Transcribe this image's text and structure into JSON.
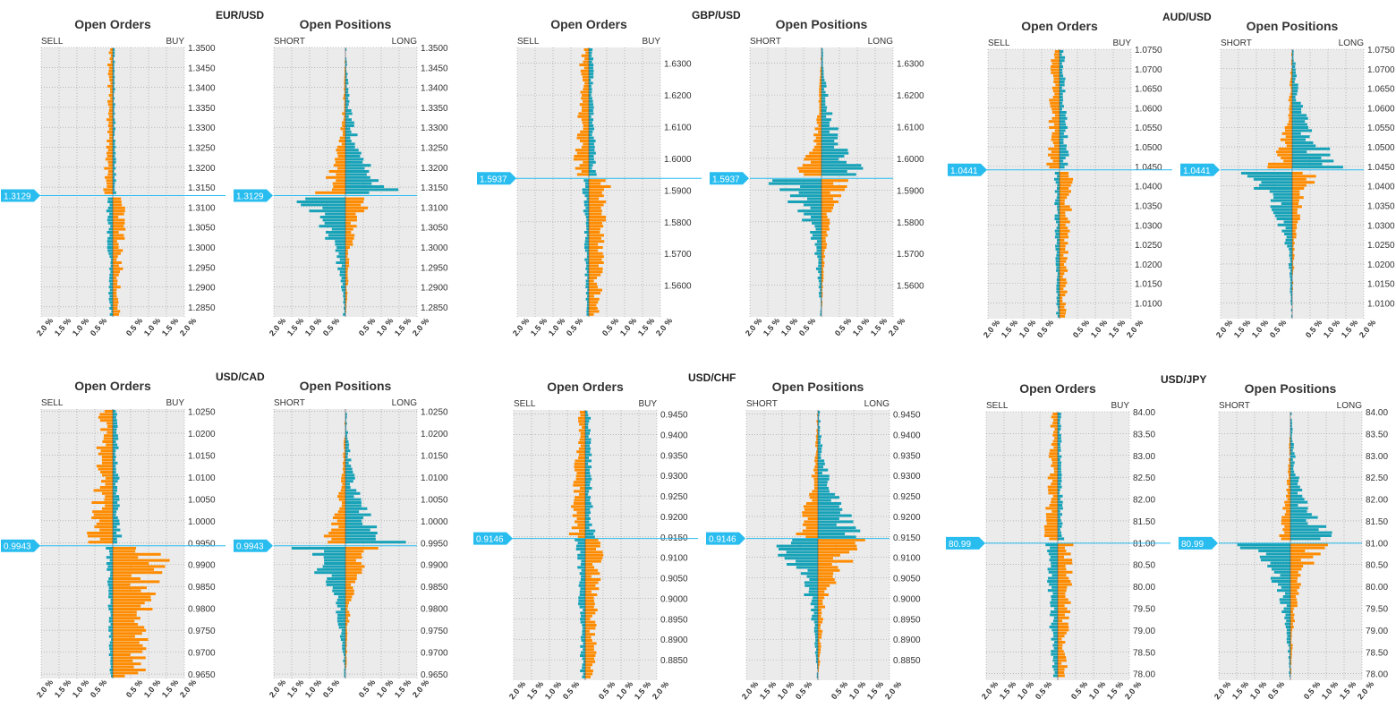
{
  "colors": {
    "orange": "#FF8C00",
    "teal": "#17A2B8",
    "plot_bg": "#EBEBEB",
    "price_marker": "#29BDEF"
  },
  "x_axis": {
    "max_pct": 2.0,
    "tick_labels": [
      "2.0 %",
      "1.5 %",
      "1.0 %",
      "0.5 %",
      "0.5 %",
      "1.0 %",
      "1.5 %",
      "2.0 %"
    ]
  },
  "chart_data": [
    {
      "type": "bar",
      "pair": "EUR/USD",
      "price": 1.3129,
      "price_label": "1.3129",
      "ylim": [
        1.2825,
        1.35
      ],
      "y_ticks": [
        "1.3500",
        "1.3450",
        "1.3400",
        "1.3350",
        "1.3300",
        "1.3250",
        "1.3200",
        "1.3150",
        "1.3100",
        "1.3050",
        "1.3000",
        "1.2950",
        "1.2900",
        "1.2850"
      ],
      "orders": {
        "title": "Open Orders",
        "left_label": "SELL",
        "right_label": "BUY",
        "left_series": "SELL",
        "right_series": "BUY",
        "above": {
          "left_max": 0.3,
          "right_max": 0.12,
          "left_color": "orange",
          "right_color": "teal"
        },
        "below": {
          "left_max": 0.22,
          "right_max": 0.45,
          "left_color": "teal",
          "right_color": "orange"
        }
      },
      "positions": {
        "title": "Open Positions",
        "left_label": "SHORT",
        "right_label": "LONG",
        "above": {
          "left_max": 1.0,
          "right_max": 1.9,
          "left_color": "orange",
          "right_color": "teal"
        },
        "below": {
          "left_max": 1.9,
          "right_max": 0.9,
          "left_color": "teal",
          "right_color": "orange"
        }
      }
    },
    {
      "type": "bar",
      "pair": "GBP/USD",
      "price": 1.5937,
      "price_label": "1.5937",
      "ylim": [
        1.55,
        1.635
      ],
      "y_ticks": [
        "1.6300",
        "1.6200",
        "1.6100",
        "1.6000",
        "1.5900",
        "1.5800",
        "1.5700",
        "1.5600"
      ],
      "orders": {
        "title": "Open Orders",
        "left_label": "SELL",
        "right_label": "BUY",
        "above": {
          "left_max": 0.5,
          "right_max": 0.25,
          "left_color": "orange",
          "right_color": "teal"
        },
        "below": {
          "left_max": 0.2,
          "right_max": 0.7,
          "left_color": "teal",
          "right_color": "orange"
        }
      },
      "positions": {
        "title": "Open Positions",
        "left_label": "SHORT",
        "right_label": "LONG",
        "above": {
          "left_max": 0.9,
          "right_max": 1.9,
          "left_color": "orange",
          "right_color": "teal"
        },
        "below": {
          "left_max": 1.9,
          "right_max": 1.0,
          "left_color": "teal",
          "right_color": "orange"
        }
      }
    },
    {
      "type": "bar",
      "pair": "AUD/USD",
      "price": 1.0441,
      "price_label": "1.0441",
      "ylim": [
        1.006,
        1.075
      ],
      "y_ticks": [
        "1.0750",
        "1.0700",
        "1.0650",
        "1.0600",
        "1.0550",
        "1.0500",
        "1.0450",
        "1.0400",
        "1.0350",
        "1.0300",
        "1.0250",
        "1.0200",
        "1.0150",
        "1.0100"
      ],
      "orders": {
        "title": "Open Orders",
        "left_label": "SELL",
        "right_label": "BUY",
        "above": {
          "left_max": 0.45,
          "right_max": 0.3,
          "left_color": "orange",
          "right_color": "teal"
        },
        "below": {
          "left_max": 0.2,
          "right_max": 0.45,
          "left_color": "teal",
          "right_color": "orange"
        }
      },
      "positions": {
        "title": "Open Positions",
        "left_label": "SHORT",
        "right_label": "LONG",
        "above": {
          "left_max": 0.8,
          "right_max": 1.9,
          "left_color": "orange",
          "right_color": "teal"
        },
        "below": {
          "left_max": 1.9,
          "right_max": 0.9,
          "left_color": "teal",
          "right_color": "orange"
        }
      }
    },
    {
      "type": "bar",
      "pair": "USD/CAD",
      "price": 0.9943,
      "price_label": "0.9943",
      "ylim": [
        0.964,
        1.0255
      ],
      "y_ticks": [
        "1.0250",
        "1.0200",
        "1.0150",
        "1.0100",
        "1.0050",
        "1.0000",
        "0.9950",
        "0.9900",
        "0.9850",
        "0.9800",
        "0.9750",
        "0.9700",
        "0.9650"
      ],
      "orders": {
        "title": "Open Orders",
        "left_label": "SELL",
        "right_label": "BUY",
        "above": {
          "left_max": 0.8,
          "right_max": 0.3,
          "left_color": "orange",
          "right_color": "teal"
        },
        "below": {
          "left_max": 0.2,
          "right_max": 1.8,
          "left_color": "teal",
          "right_color": "orange"
        }
      },
      "positions": {
        "title": "Open Positions",
        "left_label": "SHORT",
        "right_label": "LONG",
        "above": {
          "left_max": 0.9,
          "right_max": 1.9,
          "left_color": "orange",
          "right_color": "teal"
        },
        "below": {
          "left_max": 1.9,
          "right_max": 1.0,
          "left_color": "teal",
          "right_color": "orange"
        }
      }
    },
    {
      "type": "bar",
      "pair": "USD/CHF",
      "price": 0.9146,
      "price_label": "0.9146",
      "ylim": [
        0.88,
        0.946
      ],
      "y_ticks": [
        "0.9450",
        "0.9400",
        "0.9350",
        "0.9300",
        "0.9250",
        "0.9200",
        "0.9150",
        "0.9100",
        "0.9050",
        "0.9000",
        "0.8950",
        "0.8900",
        "0.8850"
      ],
      "orders": {
        "title": "Open Orders",
        "left_label": "SELL",
        "right_label": "BUY",
        "above": {
          "left_max": 0.5,
          "right_max": 0.3,
          "left_color": "orange",
          "right_color": "teal"
        },
        "below": {
          "left_max": 0.3,
          "right_max": 0.6,
          "left_color": "teal",
          "right_color": "orange"
        }
      },
      "positions": {
        "title": "Open Positions",
        "left_label": "SHORT",
        "right_label": "LONG",
        "above": {
          "left_max": 1.0,
          "right_max": 1.9,
          "left_color": "orange",
          "right_color": "teal"
        },
        "below": {
          "left_max": 1.9,
          "right_max": 1.9,
          "left_color": "teal",
          "right_color": "orange"
        }
      }
    },
    {
      "type": "bar",
      "pair": "USD/JPY",
      "price": 80.99,
      "price_label": "80.99",
      "ylim": [
        77.85,
        84.0
      ],
      "y_ticks": [
        "84.00",
        "83.50",
        "83.00",
        "82.50",
        "82.00",
        "81.50",
        "81.00",
        "80.50",
        "80.00",
        "79.50",
        "79.00",
        "78.50",
        "78.00"
      ],
      "orders": {
        "title": "Open Orders",
        "left_label": "SELL",
        "right_label": "BUY",
        "above": {
          "left_max": 0.45,
          "right_max": 0.2,
          "left_color": "orange",
          "right_color": "teal"
        },
        "below": {
          "left_max": 0.4,
          "right_max": 0.55,
          "left_color": "teal",
          "right_color": "orange"
        }
      },
      "positions": {
        "title": "Open Positions",
        "left_label": "SHORT",
        "right_label": "LONG",
        "above": {
          "left_max": 0.6,
          "right_max": 1.6,
          "left_color": "orange",
          "right_color": "teal"
        },
        "below": {
          "left_max": 1.7,
          "right_max": 1.2,
          "left_color": "teal",
          "right_color": "orange"
        }
      }
    }
  ]
}
